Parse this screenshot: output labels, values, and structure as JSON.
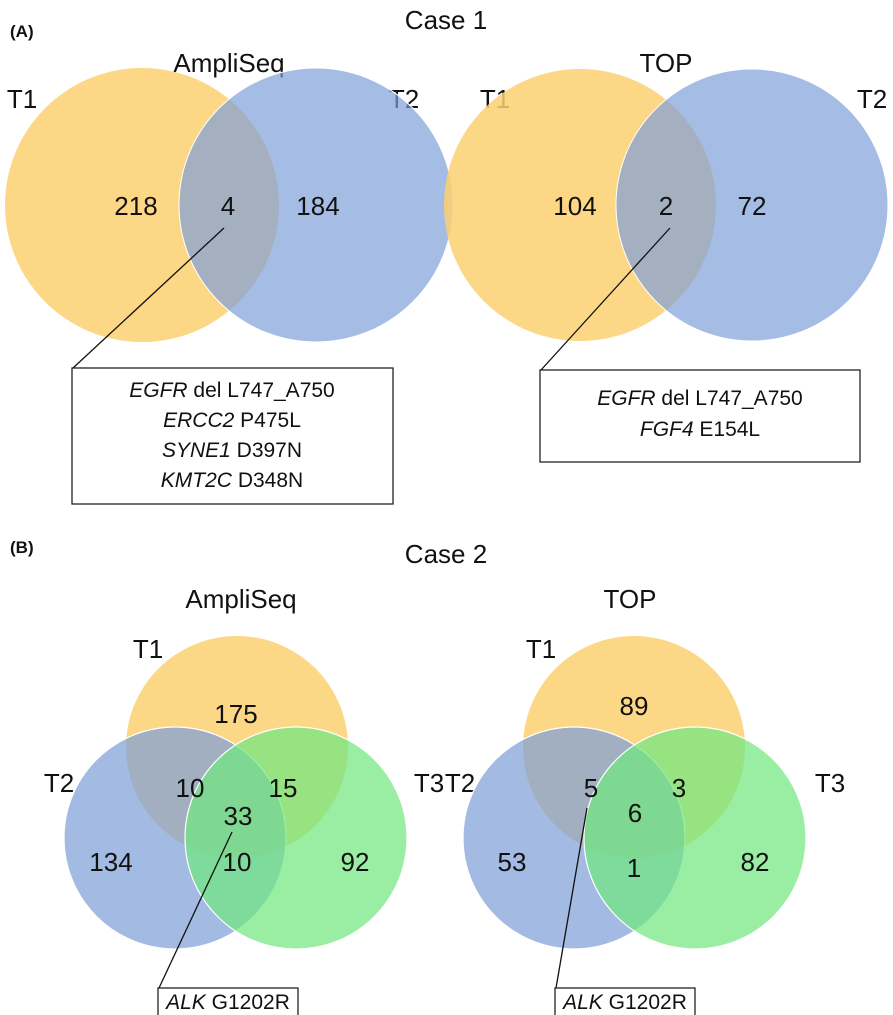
{
  "panel_a": {
    "label": "(A)",
    "case_title": "Case 1",
    "ampliseq": {
      "title": "AmpliSeq",
      "set_labels": [
        "T1",
        "T2"
      ],
      "counts": {
        "t1_only": "218",
        "overlap": "4",
        "t2_only": "184"
      },
      "annotations": [
        {
          "gene": "EGFR",
          "change": " del L747_A750"
        },
        {
          "gene": "ERCC2",
          "change": " P475L"
        },
        {
          "gene": "SYNE1",
          "change": " D397N"
        },
        {
          "gene": "KMT2C",
          "change": " D348N"
        }
      ]
    },
    "top": {
      "title": "TOP",
      "set_labels": [
        "T1",
        "T2"
      ],
      "counts": {
        "t1_only": "104",
        "overlap": "2",
        "t2_only": "72"
      },
      "annotations": [
        {
          "gene": "EGFR",
          "change": " del L747_A750"
        },
        {
          "gene": "FGF4",
          "change": " E154L"
        }
      ]
    }
  },
  "panel_b": {
    "label": "(B)",
    "case_title": "Case 2",
    "ampliseq": {
      "title": "AmpliSeq",
      "set_labels": [
        "T1",
        "T2",
        "T3"
      ],
      "counts": {
        "t1_only": "175",
        "t2_only": "134",
        "t3_only": "92",
        "t1_t2": "10",
        "t1_t3": "15",
        "t2_t3": "10",
        "all": "33"
      },
      "annotation": {
        "gene": "ALK",
        "change": " G1202R"
      }
    },
    "top": {
      "title": "TOP",
      "set_labels": [
        "T1",
        "T2",
        "T3"
      ],
      "counts": {
        "t1_only": "89",
        "t2_only": "53",
        "t3_only": "82",
        "t1_t2": "5",
        "t1_t3": "3",
        "t2_t3": "1",
        "all": "6"
      },
      "annotation": {
        "gene": "ALK",
        "change": " G1202R"
      }
    }
  },
  "colors": {
    "t1": "#fcd070",
    "t2": "#7f9fd8",
    "t3": "#72e87f"
  }
}
